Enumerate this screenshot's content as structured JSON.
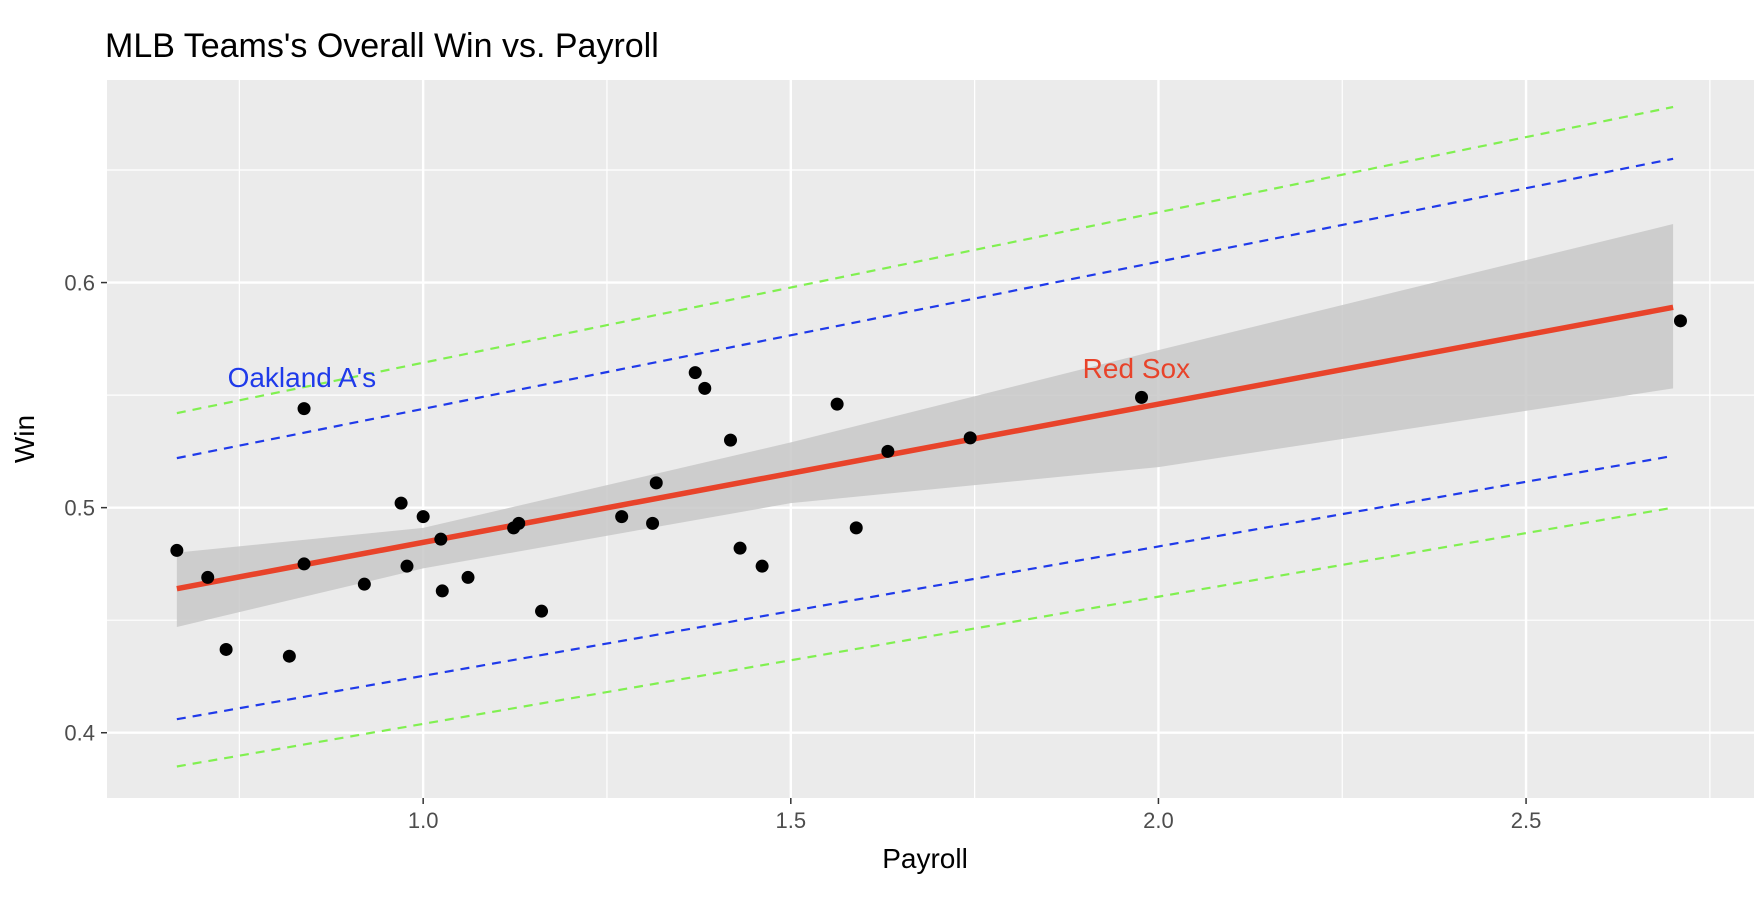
{
  "chart_data": {
    "type": "scatter",
    "title": "MLB Teams's Overall Win  vs. Payroll",
    "xlabel": "Payroll",
    "ylabel": "Win",
    "xlim": [
      0.57,
      2.81
    ],
    "ylim": [
      0.371,
      0.69
    ],
    "x_ticks": [
      1.0,
      1.5,
      2.0,
      2.5
    ],
    "x_tick_labels": [
      "1.0",
      "1.5",
      "2.0",
      "2.5"
    ],
    "y_ticks": [
      0.4,
      0.5,
      0.6
    ],
    "y_tick_labels": [
      "0.4",
      "0.5",
      "0.6"
    ],
    "grid": true,
    "background_color": "#ebebeb",
    "points": [
      {
        "x": 0.665,
        "y": 0.481
      },
      {
        "x": 0.707,
        "y": 0.469
      },
      {
        "x": 0.732,
        "y": 0.437
      },
      {
        "x": 0.818,
        "y": 0.434
      },
      {
        "x": 0.838,
        "y": 0.475
      },
      {
        "x": 0.838,
        "y": 0.544
      },
      {
        "x": 0.92,
        "y": 0.466
      },
      {
        "x": 0.97,
        "y": 0.502
      },
      {
        "x": 0.978,
        "y": 0.474
      },
      {
        "x": 1.0,
        "y": 0.496
      },
      {
        "x": 1.024,
        "y": 0.486
      },
      {
        "x": 1.026,
        "y": 0.463
      },
      {
        "x": 1.061,
        "y": 0.469
      },
      {
        "x": 1.123,
        "y": 0.491
      },
      {
        "x": 1.13,
        "y": 0.493
      },
      {
        "x": 1.161,
        "y": 0.454
      },
      {
        "x": 1.27,
        "y": 0.496
      },
      {
        "x": 1.312,
        "y": 0.493
      },
      {
        "x": 1.317,
        "y": 0.511
      },
      {
        "x": 1.37,
        "y": 0.56
      },
      {
        "x": 1.383,
        "y": 0.553
      },
      {
        "x": 1.418,
        "y": 0.53
      },
      {
        "x": 1.431,
        "y": 0.482
      },
      {
        "x": 1.461,
        "y": 0.474
      },
      {
        "x": 1.563,
        "y": 0.546
      },
      {
        "x": 1.589,
        "y": 0.491
      },
      {
        "x": 1.632,
        "y": 0.525
      },
      {
        "x": 1.744,
        "y": 0.531
      },
      {
        "x": 1.977,
        "y": 0.549
      },
      {
        "x": 2.71,
        "y": 0.583
      }
    ],
    "regression": {
      "x0": 0.665,
      "y0": 0.464,
      "x1": 2.7,
      "y1": 0.589,
      "color": "#e8432a"
    },
    "confidence_band": {
      "x": [
        0.665,
        1.0,
        1.5,
        2.0,
        2.7
      ],
      "upper": [
        0.48,
        0.491,
        0.529,
        0.57,
        0.626
      ],
      "lower": [
        0.447,
        0.473,
        0.502,
        0.518,
        0.553
      ],
      "color": "#c8c8c8"
    },
    "bounds": [
      {
        "name": "upper-green",
        "x0": 0.665,
        "y0": 0.542,
        "x1": 2.7,
        "y1": 0.678,
        "color": "#80f050"
      },
      {
        "name": "upper-blue",
        "x0": 0.665,
        "y0": 0.522,
        "x1": 2.7,
        "y1": 0.655,
        "color": "#1f3aea"
      },
      {
        "name": "lower-blue",
        "x0": 0.665,
        "y0": 0.406,
        "x1": 2.7,
        "y1": 0.523,
        "color": "#1f3aea"
      },
      {
        "name": "lower-green",
        "x0": 0.665,
        "y0": 0.385,
        "x1": 2.7,
        "y1": 0.5,
        "color": "#80f050"
      }
    ],
    "annotations": [
      {
        "text": "Oakland A's",
        "x": 0.835,
        "y": 0.558,
        "color": "#1f3aea"
      },
      {
        "text": "Red Sox",
        "x": 1.97,
        "y": 0.562,
        "color": "#e8432a"
      }
    ]
  }
}
